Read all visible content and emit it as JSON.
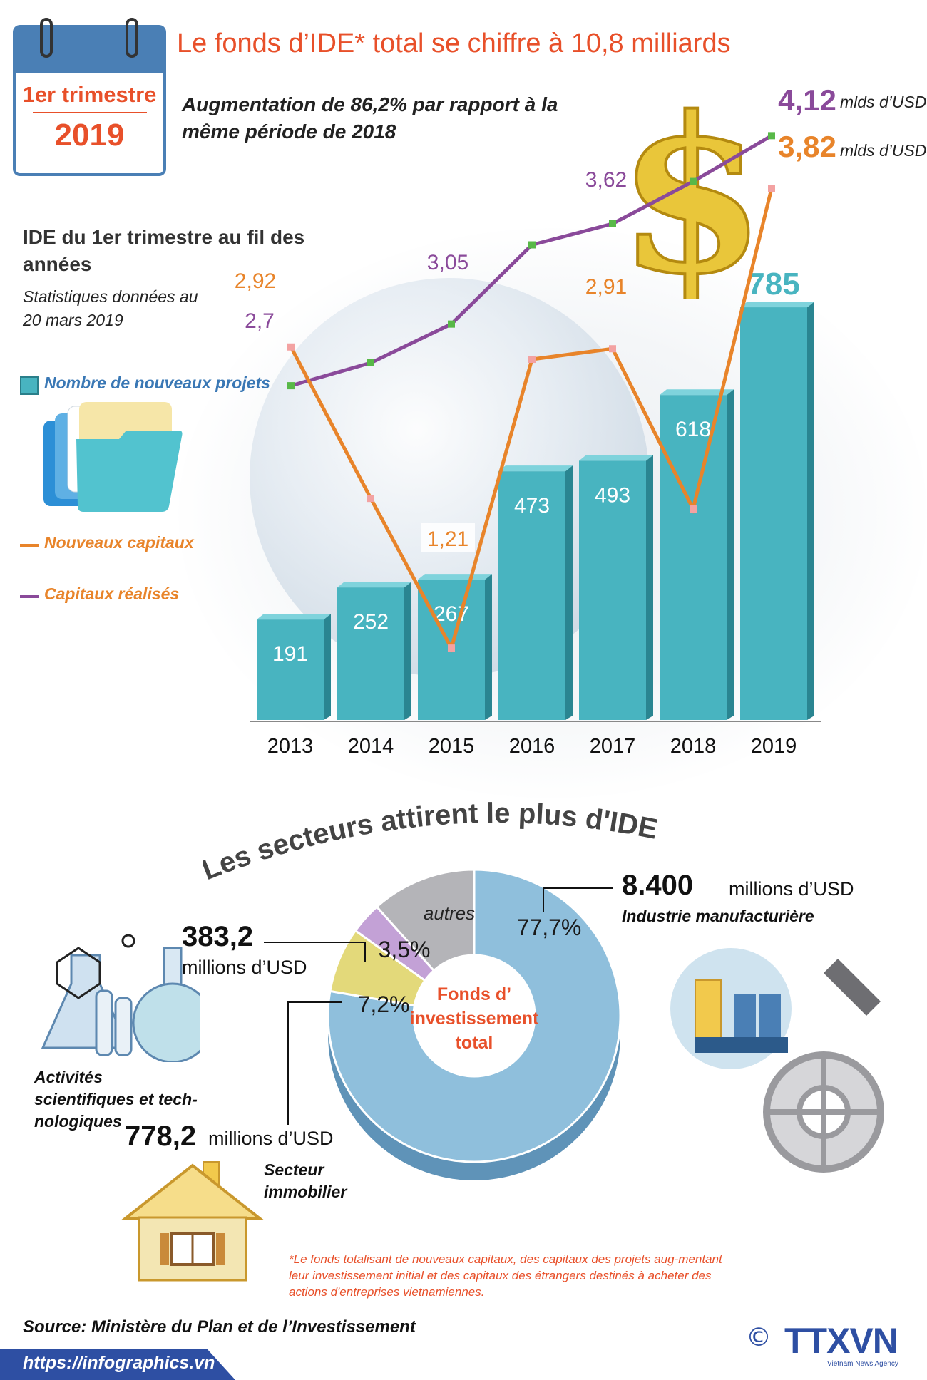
{
  "header": {
    "calendar_line1": "1er trimestre",
    "calendar_line2": "2019",
    "title": "Le fonds d’IDE* total se chiffre à 10,8 milliards",
    "subtitle": "Augmentation de 86,2% par rapport à la même période de 2018"
  },
  "fdi_section": {
    "heading": "IDE du 1er trimestre au fil des années",
    "note": "Statistiques  données au 20 mars 2019",
    "legend_projects": "Nombre de nouveaux projets",
    "legend_new_capital": "Nouveaux capitaux",
    "legend_realized": "Capitaux réalisés",
    "unit_realized": "mlds d’USD",
    "unit_new": "mlds d’USD"
  },
  "chart_data": [
    {
      "type": "bar",
      "categories": [
        "2013",
        "2014",
        "2015",
        "2016",
        "2017",
        "2018",
        "2019"
      ],
      "series": [
        {
          "name": "Nombre de nouveaux projets",
          "values": [
            191,
            252,
            267,
            473,
            493,
            618,
            785
          ]
        }
      ],
      "labels": [
        "191",
        "252",
        "267",
        "473",
        "493",
        "618",
        "785"
      ]
    },
    {
      "type": "line",
      "categories": [
        "2013",
        "2014",
        "2015",
        "2016",
        "2017",
        "2018",
        "2019"
      ],
      "series": [
        {
          "name": "Nouveaux capitaux",
          "values": [
            2.92,
            2.06,
            1.21,
            2.85,
            2.91,
            2.0,
            3.82
          ],
          "labels": [
            "2,92",
            "",
            "1,21",
            "",
            "2,91",
            "",
            "3,82"
          ]
        },
        {
          "name": "Capitaux réalisés",
          "values": [
            2.7,
            2.83,
            3.05,
            3.5,
            3.62,
            3.86,
            4.12
          ],
          "labels": [
            "2,7",
            "",
            "3,05",
            "",
            "3,62",
            "",
            "4,12"
          ]
        }
      ]
    },
    {
      "type": "pie",
      "title": "Fonds d’ investissement total",
      "slices": [
        {
          "name": "Industrie manufacturière",
          "value": 77.7,
          "label": "77,7%",
          "color": "#8fbfdc"
        },
        {
          "name": "Secteur immobilier",
          "value": 7.2,
          "label": "7,2%",
          "color": "#e3d97a"
        },
        {
          "name": "Activités scientifiques et technologiques",
          "value": 3.5,
          "label": "3,5%",
          "color": "#c3a1d6"
        },
        {
          "name": "autres",
          "value": 11.6,
          "label": "",
          "color": "#b4b4b8"
        }
      ],
      "others_label": "autres"
    }
  ],
  "sectors": {
    "section_title": "Les secteurs attirent le plus d'IDE",
    "manufacturing": {
      "value": "8.400",
      "unit": "millions d’USD",
      "label": "Industrie manufacturière"
    },
    "science": {
      "value": "383,2",
      "unit": "millions d’USD",
      "label": "Activités scientifiques et tech-nologiques"
    },
    "real_estate": {
      "value": "778,2",
      "unit": "millions d’USD",
      "label": "Secteur immobilier"
    }
  },
  "footnote": "*Le fonds totalisant  de nouveaux capitaux,  des capitaux des projets aug-mentant leur investissement initial et des capitaux des étrangers destinés à acheter des actions d'entreprises vietnamiennes.",
  "footer": {
    "source": "Source:  Ministère du Plan et de l’Investissement",
    "url": "https://infographics.vn",
    "copyright": "©",
    "logo": "TTXVN",
    "logo_sub": "Vietnam News Agency"
  },
  "colors": {
    "accent": "#e8502a",
    "bar": "#48b4c0",
    "new_capital_line": "#e8842a",
    "realized_line": "#8a4a9a",
    "brand": "#2e4fa3"
  }
}
